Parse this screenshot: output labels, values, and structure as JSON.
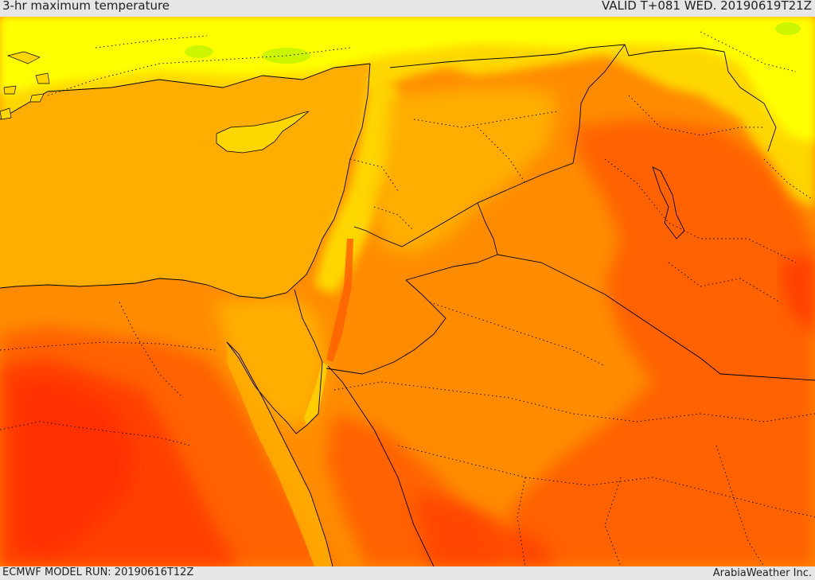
{
  "header": {
    "title": "3-hr maximum temperature",
    "valid": "VALID T+081 WED. 20190619T21Z"
  },
  "footer": {
    "model_run": "ECMWF MODEL RUN: 20190616T12Z",
    "credit": "ArabiaWeather Inc."
  },
  "colors": {
    "land_yellow": "#ffff00",
    "light_orange": "#ffd700",
    "sea_orange": "#ffae00",
    "orange": "#ff8c00",
    "deep_orange": "#ff6200",
    "red_orange": "#ff4000",
    "red": "#ff2a00",
    "green": "#a8f000",
    "border": "#000000"
  }
}
